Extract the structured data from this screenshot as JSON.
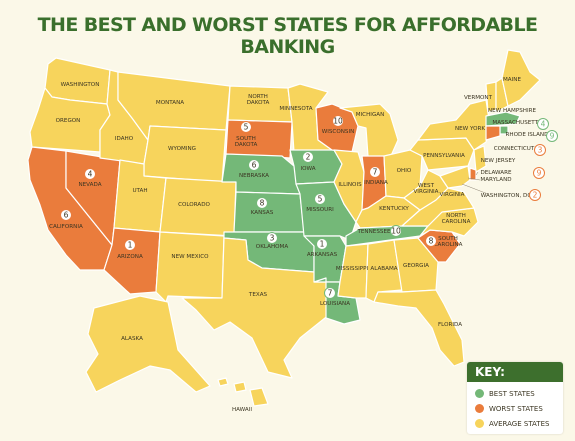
{
  "title": "THE BEST AND WORST STATES FOR AFFORDABLE BANKING",
  "colors": {
    "best": "#74b878",
    "worst": "#ea7c3c",
    "average": "#f7d45c",
    "title": "#3a6f2c"
  },
  "key": {
    "title": "KEY:",
    "best_label": "BEST STATES",
    "worst_label": "WORST STATES",
    "average_label": "AVERAGE STATES"
  },
  "state_labels": {
    "washington": "WASHINGTON",
    "oregon": "OREGON",
    "california": "CALIFORNIA",
    "nevada": "NEVADA",
    "idaho": "IDAHO",
    "montana": "MONTANA",
    "wyoming": "WYOMING",
    "utah": "UTAH",
    "arizona": "ARIZONA",
    "colorado": "COLORADO",
    "new_mexico": "NEW MEXICO",
    "north_dakota_1": "NORTH",
    "north_dakota_2": "DAKOTA",
    "south_dakota_1": "SOUTH",
    "south_dakota_2": "DAKOTA",
    "nebraska": "NEBRASKA",
    "kansas": "KANSAS",
    "oklahoma": "OKLAHOMA",
    "texas": "TEXAS",
    "minnesota": "MINNESOTA",
    "iowa": "IOWA",
    "missouri": "MISSOURI",
    "arkansas": "ARKANSAS",
    "louisiana": "LOUISIANA",
    "wisconsin": "WISCONSIN",
    "illinois": "ILLINOIS",
    "michigan": "MICHIGAN",
    "indiana": "INDIANA",
    "ohio": "OHIO",
    "kentucky": "KENTUCKY",
    "tennessee": "TENNESSEE",
    "mississippi": "MISSISSIPPI",
    "alabama": "ALABAMA",
    "georgia": "GEORGIA",
    "florida": "FLORIDA",
    "south_carolina_1": "SOUTH",
    "south_carolina_2": "CAROLINA",
    "north_carolina_1": "NORTH",
    "north_carolina_2": "CAROLINA",
    "virginia": "VIRGINIA",
    "west_virginia_1": "WEST",
    "west_virginia_2": "VIRGINIA",
    "pennsylvania": "PENNSYLVANIA",
    "new_york": "NEW YORK",
    "vermont": "VERMONT",
    "new_hampshire": "NEW HAMPSHIRE",
    "maine": "MAINE",
    "massachusetts": "MASSACHUSETTS",
    "rhode_island": "RHODE ISLAND",
    "connecticut": "CONNECTICUT",
    "new_jersey": "NEW JERSEY",
    "delaware": "DELAWARE",
    "maryland": "MARYLAND",
    "washington_dc": "WASHINGTON, DC",
    "alaska": "ALASKA",
    "hawaii": "HAWAII"
  },
  "ranks": {
    "iowa": "2",
    "oklahoma": "3",
    "arkansas": "1",
    "missouri": "5",
    "nebraska": "6",
    "louisiana": "7",
    "kansas": "8",
    "tennessee": "10",
    "massachusetts": "4",
    "rhode_island": "9",
    "arizona": "1",
    "connecticut": "3",
    "nevada": "4",
    "south_dakota": "5",
    "california": "6",
    "indiana": "7",
    "south_carolina": "8",
    "wisconsin": "10",
    "washington_dc": "2",
    "delaware": "9"
  },
  "status": {
    "best": [
      "iowa",
      "oklahoma",
      "arkansas",
      "missouri",
      "nebraska",
      "louisiana",
      "kansas",
      "tennessee",
      "massachusetts",
      "rhode_island"
    ],
    "worst": [
      "arizona",
      "connecticut",
      "nevada",
      "south_dakota",
      "california",
      "indiana",
      "south_carolina",
      "wisconsin",
      "washington_dc",
      "delaware"
    ]
  }
}
